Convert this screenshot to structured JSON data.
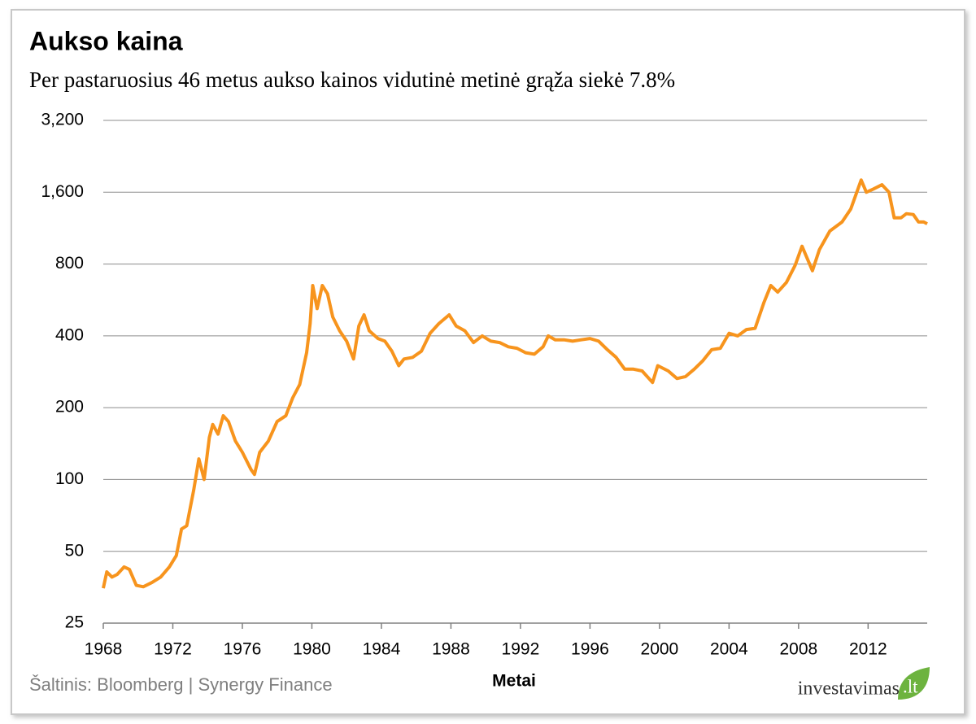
{
  "chart_data": {
    "type": "line",
    "title": "Aukso kaina",
    "subtitle": "Per pastaruosius  46 metus aukso kainos vidutinė metinė grąža  siekė 7.8%",
    "x_label": "Metai",
    "source": "Šaltinis: Bloomberg | Synergy Finance",
    "logo": {
      "text": "investavimas",
      "suffix": ".lt"
    },
    "color": "#f7941d",
    "log_y": true,
    "grid": true,
    "xlim": [
      1968,
      2015.4
    ],
    "ylim": [
      25,
      3200
    ],
    "xticks": [
      1968,
      1972,
      1976,
      1980,
      1984,
      1988,
      1992,
      1996,
      2000,
      2004,
      2008,
      2012
    ],
    "yticks": [
      25,
      50,
      100,
      200,
      400,
      800,
      {
        "value": 1600,
        "label": "1,600"
      },
      {
        "value": 3200,
        "label": "3,200"
      }
    ],
    "x": [
      1968.0,
      1968.2,
      1968.5,
      1968.8,
      1969.2,
      1969.5,
      1969.9,
      1970.3,
      1970.8,
      1971.3,
      1971.8,
      1972.2,
      1972.5,
      1972.8,
      1973.2,
      1973.5,
      1973.8,
      1974.1,
      1974.3,
      1974.6,
      1974.9,
      1975.2,
      1975.6,
      1976.0,
      1976.5,
      1976.7,
      1977.0,
      1977.5,
      1978.0,
      1978.5,
      1978.9,
      1979.3,
      1979.7,
      1979.9,
      1980.05,
      1980.3,
      1980.6,
      1980.9,
      1981.2,
      1981.6,
      1982.0,
      1982.4,
      1982.7,
      1983.0,
      1983.3,
      1983.8,
      1984.2,
      1984.6,
      1985.0,
      1985.3,
      1985.8,
      1986.3,
      1986.8,
      1987.3,
      1987.9,
      1988.3,
      1988.8,
      1989.3,
      1989.8,
      1990.3,
      1990.8,
      1991.3,
      1991.8,
      1992.3,
      1992.8,
      1993.3,
      1993.6,
      1994.0,
      1994.5,
      1995.0,
      1995.5,
      1996.0,
      1996.5,
      1997.0,
      1997.5,
      1998.0,
      1998.5,
      1999.0,
      1999.6,
      1999.9,
      2000.5,
      2001.0,
      2001.5,
      2002.0,
      2002.5,
      2003.0,
      2003.5,
      2004.0,
      2004.5,
      2005.0,
      2005.5,
      2006.0,
      2006.4,
      2006.8,
      2007.3,
      2007.8,
      2008.2,
      2008.8,
      2009.2,
      2009.8,
      2010.5,
      2011.0,
      2011.6,
      2011.9,
      2012.3,
      2012.8,
      2013.2,
      2013.5,
      2013.9,
      2014.2,
      2014.6,
      2014.9,
      2015.2,
      2015.4
    ],
    "values": [
      35,
      41,
      39,
      40,
      43,
      42,
      36,
      35.5,
      37,
      39,
      43,
      48,
      62,
      64,
      90,
      122,
      100,
      150,
      170,
      155,
      185,
      175,
      145,
      130,
      110,
      105,
      130,
      145,
      175,
      185,
      220,
      250,
      340,
      450,
      650,
      520,
      650,
      600,
      480,
      420,
      380,
      320,
      440,
      490,
      420,
      390,
      380,
      345,
      300,
      320,
      325,
      345,
      410,
      450,
      490,
      440,
      420,
      375,
      400,
      380,
      375,
      360,
      355,
      340,
      335,
      360,
      400,
      385,
      385,
      380,
      385,
      390,
      380,
      350,
      325,
      290,
      290,
      285,
      255,
      300,
      285,
      265,
      270,
      290,
      315,
      350,
      355,
      410,
      400,
      425,
      430,
      550,
      650,
      610,
      670,
      790,
      950,
      750,
      920,
      1100,
      1200,
      1360,
      1800,
      1600,
      1650,
      1720,
      1600,
      1250,
      1250,
      1300,
      1290,
      1200,
      1200,
      1180
    ]
  }
}
